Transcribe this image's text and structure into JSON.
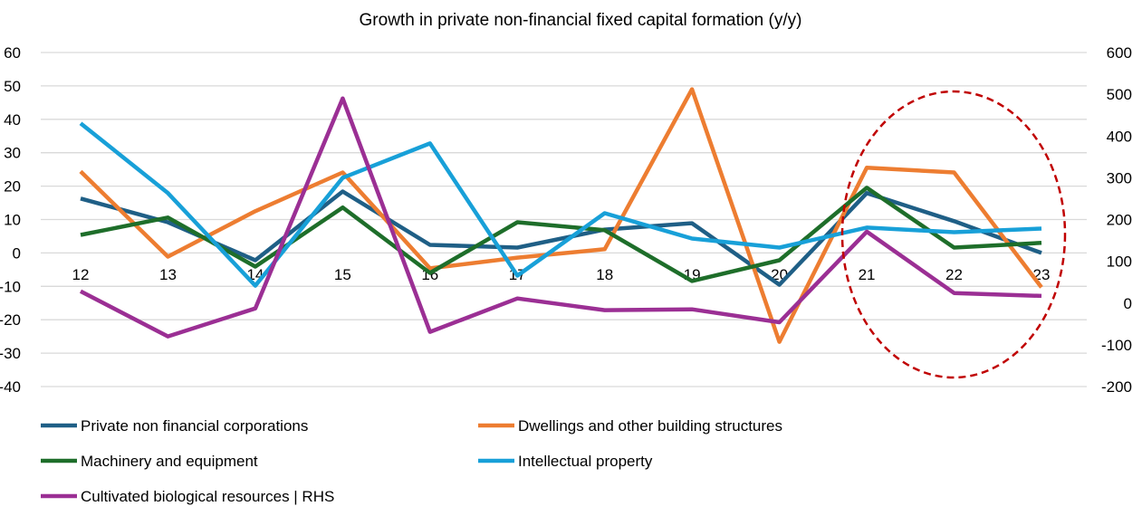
{
  "chart_data": {
    "type": "line",
    "title": "Growth in private non-financial fixed capital formation (y/y)",
    "categories": [
      "12",
      "13",
      "14",
      "15",
      "16",
      "17",
      "18",
      "19",
      "20",
      "21",
      "22",
      "23"
    ],
    "y_left": {
      "range": [
        -40,
        60
      ],
      "ticks": [
        "60",
        "50",
        "40",
        "30",
        "20",
        "10",
        "0",
        "-10",
        "-20",
        "-30",
        "-40"
      ],
      "tick_values": [
        60,
        50,
        40,
        30,
        20,
        10,
        0,
        -10,
        -20,
        -30,
        -40
      ]
    },
    "y_right": {
      "range": [
        -200,
        600
      ],
      "ticks": [
        "600",
        "500",
        "400",
        "300",
        "200",
        "100",
        "0",
        "-100",
        "-200"
      ],
      "tick_values": [
        600,
        500,
        400,
        300,
        200,
        100,
        0,
        -100,
        -200
      ]
    },
    "grid": true,
    "legend_position": "bottom",
    "series": [
      {
        "name": "Private non financial corporations",
        "color": "#1f5f86",
        "axis": "left",
        "values": [
          16.3,
          9.2,
          -2.2,
          18.4,
          2.4,
          1.6,
          7.0,
          8.9,
          -9.5,
          17.9,
          9.5,
          0.0
        ]
      },
      {
        "name": "Dwellings and other building structures",
        "color": "#ed7d31",
        "axis": "left",
        "values": [
          24.4,
          -1.1,
          12.5,
          24.1,
          -4.6,
          -1.4,
          1.1,
          49.0,
          -26.6,
          25.5,
          24.1,
          -10.3
        ]
      },
      {
        "name": "Machinery and equipment",
        "color": "#1e6e2a",
        "axis": "left",
        "values": [
          5.4,
          10.6,
          -4.1,
          13.6,
          -6.0,
          9.2,
          6.8,
          -8.4,
          -2.2,
          19.5,
          1.6,
          3.0
        ]
      },
      {
        "name": "Intellectual property",
        "color": "#18a0d8",
        "axis": "left",
        "values": [
          38.8,
          17.9,
          -9.8,
          22.5,
          32.8,
          -6.8,
          11.9,
          4.3,
          1.6,
          7.6,
          6.2,
          7.3
        ]
      },
      {
        "name": "Cultivated biological resources | RHS",
        "color": "#9b2f94",
        "axis": "right",
        "values": [
          28,
          -80,
          -13,
          490,
          -69,
          11,
          -17,
          -15,
          -46,
          171,
          24,
          17
        ]
      }
    ],
    "annotation": {
      "type": "dashed-ellipse",
      "color": "#c00000",
      "highlights": [
        "21",
        "22",
        "23"
      ]
    }
  }
}
